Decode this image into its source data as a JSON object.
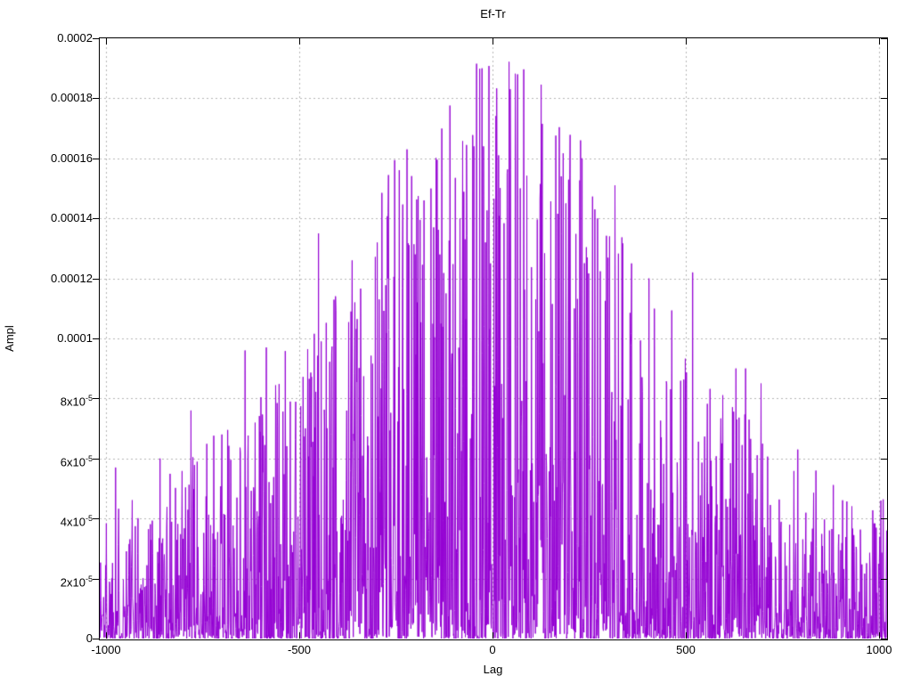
{
  "window": {
    "background": "#ffffff"
  },
  "chart_data": {
    "type": "line",
    "style": "dense noisy amplitude trace (gnuplot-like single series)",
    "title": "Ef-Tr",
    "xlabel": "Lag",
    "ylabel": "Ampl",
    "xlim": [
      -1016,
      1021
    ],
    "ylim": [
      0,
      0.0002
    ],
    "grid": true,
    "legend": "none",
    "line_color": "#9400d3",
    "grid_color": "#b5b5b5",
    "border_color": "#000000",
    "x_ticks": [
      {
        "value": -1000,
        "label": "-1000"
      },
      {
        "value": -500,
        "label": "-500"
      },
      {
        "value": 0,
        "label": "0"
      },
      {
        "value": 500,
        "label": "500"
      },
      {
        "value": 1000,
        "label": "1000"
      }
    ],
    "y_ticks": [
      {
        "value": 0,
        "label": "0"
      },
      {
        "value": 2e-05,
        "label": "2x10^-5"
      },
      {
        "value": 4e-05,
        "label": "4x10^-5"
      },
      {
        "value": 6e-05,
        "label": "6x10^-5"
      },
      {
        "value": 8e-05,
        "label": "8x10^-5"
      },
      {
        "value": 0.0001,
        "label": "0.0001"
      },
      {
        "value": 0.00012,
        "label": "0.00012"
      },
      {
        "value": 0.00014,
        "label": "0.00014"
      },
      {
        "value": 0.00016,
        "label": "0.00016"
      },
      {
        "value": 0.00018,
        "label": "0.00018"
      },
      {
        "value": 0.0002,
        "label": "0.0002"
      }
    ],
    "series_model": {
      "note": "signal is unreadable point-by-point; reproduced as seeded noise under a symmetric decaying envelope, with measured prominent peaks forced",
      "seed": 1337,
      "lag_step": 1,
      "envelope": {
        "base": 4.2e-05,
        "amp": 0.000155,
        "tau": 520,
        "shape": 1.8
      },
      "value_power": 3
    },
    "notable_peaks": [
      [
        -975,
        5.7e-05
      ],
      [
        -860,
        6e-05
      ],
      [
        -780,
        7.6e-05
      ],
      [
        -700,
        6.8e-05
      ],
      [
        -640,
        9.6e-05
      ],
      [
        -585,
        9.7e-05
      ],
      [
        -450,
        0.000135
      ],
      [
        -443,
        9.9e-05
      ],
      [
        -363,
        0.000126
      ],
      [
        -356,
        0.000112
      ],
      [
        -293,
        0.000113
      ],
      [
        -271,
        0.00012
      ],
      [
        -221,
        0.000163
      ],
      [
        -200,
        0.000128
      ],
      [
        -177,
        0.000146
      ],
      [
        -152,
        0.000137
      ],
      [
        -120,
        0.000115
      ],
      [
        -48,
        0.000164
      ],
      [
        -27,
        0.00019
      ],
      [
        -23,
        0.000164
      ],
      [
        -5,
        0.000125
      ],
      [
        16,
        0.000161
      ],
      [
        38,
        0.000155
      ],
      [
        65,
        0.000188
      ],
      [
        72,
        0.00015
      ],
      [
        112,
        0.000113
      ],
      [
        178,
        0.000154
      ],
      [
        190,
        0.000145
      ],
      [
        228,
        0.000166
      ],
      [
        232,
        0.00016
      ],
      [
        245,
        0.000127
      ],
      [
        265,
        0.000143
      ],
      [
        272,
        0.00014
      ],
      [
        317,
        0.000151
      ],
      [
        360,
        0.000125
      ],
      [
        405,
        0.00012
      ],
      [
        518,
        0.000122
      ],
      [
        630,
        9e-05
      ],
      [
        655,
        9e-05
      ],
      [
        695,
        8.5e-05
      ],
      [
        790,
        6.3e-05
      ],
      [
        1005,
        4.6e-05
      ]
    ]
  }
}
